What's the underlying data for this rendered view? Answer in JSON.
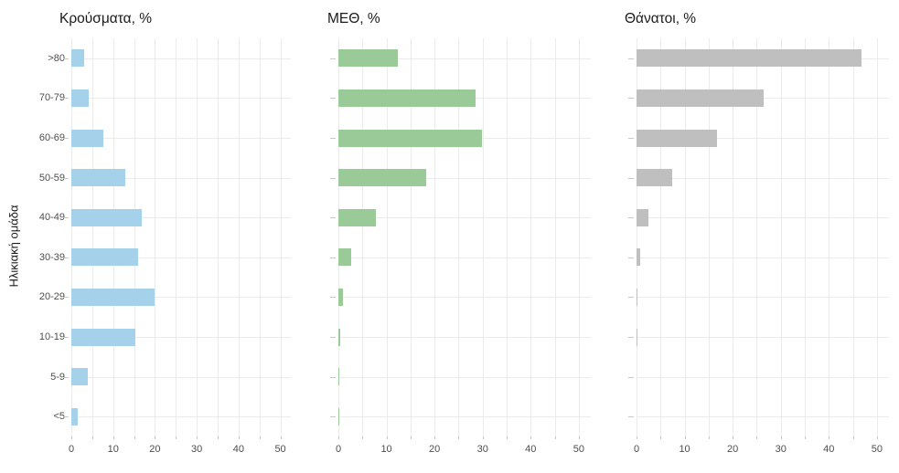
{
  "figure": {
    "y_axis_title": "Ηλικιακή ομάδα",
    "categories": [
      ">80",
      "70-79",
      "60-69",
      "50-59",
      "40-49",
      "30-39",
      "20-29",
      "10-19",
      "5-9",
      "<5"
    ],
    "x_tick_labels": [
      "0",
      "10",
      "20",
      "30",
      "40",
      "50"
    ],
    "colors": {
      "cases_bar": "#a5d1ea",
      "icu_bar": "#99ca97",
      "deaths_bar": "#bfbfbf",
      "gridline": "#ebebeb",
      "axis_tick": "#c8c8c8",
      "tick_label_text": "#4d4d4d",
      "title_text": "#1a1a1a"
    }
  },
  "chart_data": [
    {
      "type": "bar",
      "orientation": "horizontal",
      "title": "Κρούσματα, %",
      "xlabel": "",
      "ylabel": "Ηλικιακή ομάδα",
      "xlim": [
        0,
        52.5
      ],
      "x_major_ticks": [
        0,
        10,
        20,
        30,
        40,
        50
      ],
      "grid_step": 5,
      "grid": true,
      "legend": false,
      "color": "#a5d1ea",
      "categories": [
        ">80",
        "70-79",
        "60-69",
        "50-59",
        "40-49",
        "30-39",
        "20-29",
        "10-19",
        "5-9",
        "<5"
      ],
      "values": [
        3.0,
        4.1,
        7.6,
        13.0,
        16.8,
        15.9,
        19.9,
        15.3,
        4.0,
        1.6
      ]
    },
    {
      "type": "bar",
      "orientation": "horizontal",
      "title": "ΜΕΘ, %",
      "xlabel": "",
      "ylabel": "",
      "xlim": [
        0,
        52.5
      ],
      "x_major_ticks": [
        0,
        10,
        20,
        30,
        40,
        50
      ],
      "grid_step": 5,
      "grid": true,
      "legend": false,
      "color": "#99ca97",
      "categories": [
        ">80",
        "70-79",
        "60-69",
        "50-59",
        "40-49",
        "30-39",
        "20-29",
        "10-19",
        "5-9",
        "<5"
      ],
      "values": [
        12.3,
        28.6,
        29.9,
        18.3,
        7.8,
        2.6,
        0.9,
        0.4,
        0.15,
        0.2
      ]
    },
    {
      "type": "bar",
      "orientation": "horizontal",
      "title": "Θάνατοι, %",
      "xlabel": "",
      "ylabel": "",
      "xlim": [
        0,
        52.5
      ],
      "x_major_ticks": [
        0,
        10,
        20,
        30,
        40,
        50
      ],
      "grid_step": 5,
      "grid": true,
      "legend": false,
      "color": "#bfbfbf",
      "categories": [
        ">80",
        "70-79",
        "60-69",
        "50-59",
        "40-49",
        "30-39",
        "20-29",
        "10-19",
        "5-9",
        "<5"
      ],
      "values": [
        46.7,
        26.4,
        16.7,
        7.5,
        2.4,
        0.7,
        0.15,
        0.15,
        0.0,
        0.0
      ]
    }
  ]
}
